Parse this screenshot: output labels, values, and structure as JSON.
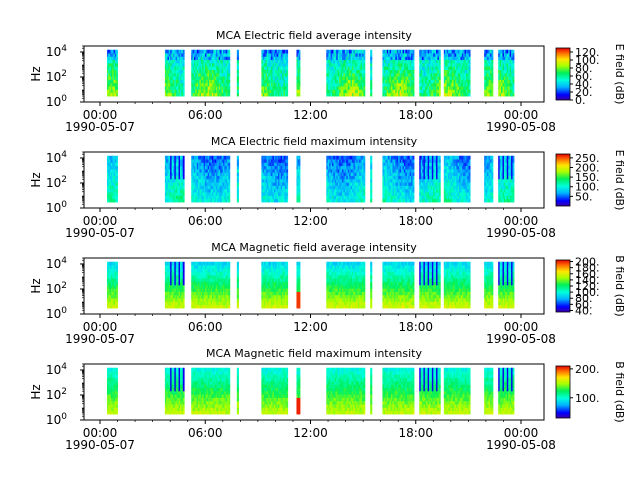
{
  "chart_data": [
    {
      "type": "heatmap",
      "title": "MCA  Electric field average intensity",
      "ylabel": "Hz",
      "y_ticks": [
        "10",
        "10",
        "10"
      ],
      "y_tick_exps": [
        "0",
        "2",
        "4"
      ],
      "y_scale": "log",
      "ylim": [
        1,
        30000
      ],
      "x_ticks": [
        "00:00",
        "06:00",
        "12:00",
        "18:00",
        "00:00"
      ],
      "x_dates": [
        "1990-05-07",
        "1990-05-08"
      ],
      "colorbar": {
        "label": "E field (dB)",
        "range": [
          0,
          130
        ],
        "ticks": [
          "0.",
          "20.",
          "40.",
          "60.",
          "80.",
          "100.",
          "120."
        ]
      },
      "style": "avg-e"
    },
    {
      "type": "heatmap",
      "title": "MCA  Electric field maximum intensity",
      "ylabel": "Hz",
      "y_ticks": [
        "10",
        "10",
        "10"
      ],
      "y_tick_exps": [
        "0",
        "2",
        "4"
      ],
      "y_scale": "log",
      "ylim": [
        1,
        30000
      ],
      "x_ticks": [
        "00:00",
        "06:00",
        "12:00",
        "18:00",
        "00:00"
      ],
      "x_dates": [
        "1990-05-07",
        "1990-05-08"
      ],
      "colorbar": {
        "label": "E field (dB)",
        "range": [
          0,
          270
        ],
        "ticks": [
          "50.",
          "100.",
          "150.",
          "200.",
          "250."
        ]
      },
      "style": "max-e"
    },
    {
      "type": "heatmap",
      "title": "MCA  Magnetic field average intensity",
      "ylabel": "Hz",
      "y_ticks": [
        "10",
        "10",
        "10"
      ],
      "y_tick_exps": [
        "0",
        "2",
        "4"
      ],
      "y_scale": "log",
      "ylim": [
        1,
        30000
      ],
      "x_ticks": [
        "00:00",
        "06:00",
        "12:00",
        "18:00",
        "00:00"
      ],
      "x_dates": [
        "1990-05-07",
        "1990-05-08"
      ],
      "colorbar": {
        "label": "B field (dB)",
        "range": [
          35,
          205
        ],
        "ticks": [
          "40.",
          "60.",
          "80.",
          "100.",
          "120.",
          "140.",
          "160.",
          "180.",
          "200."
        ]
      },
      "style": "avg-b"
    },
    {
      "type": "heatmap",
      "title": "MCA  Magnetic field maximum intensity",
      "ylabel": "Hz",
      "y_ticks": [
        "10",
        "10",
        "10"
      ],
      "y_tick_exps": [
        "0",
        "2",
        "4"
      ],
      "y_scale": "log",
      "ylim": [
        1,
        30000
      ],
      "x_ticks": [
        "00:00",
        "06:00",
        "12:00",
        "18:00",
        "00:00"
      ],
      "x_dates": [
        "1990-05-07",
        "1990-05-08"
      ],
      "colorbar": {
        "label": "B field (dB)",
        "range": [
          30,
          210
        ],
        "ticks": [
          "100.",
          "200."
        ]
      },
      "style": "max-b"
    }
  ],
  "data_segments_hours": [
    [
      0.4,
      1.0
    ],
    [
      3.7,
      4.0
    ],
    [
      4.0,
      4.8
    ],
    [
      5.2,
      7.4
    ],
    [
      7.8,
      7.9
    ],
    [
      9.2,
      10.7
    ],
    [
      11.2,
      11.4
    ],
    [
      12.9,
      15.1
    ],
    [
      15.4,
      15.5
    ],
    [
      16.1,
      17.9
    ],
    [
      18.2,
      19.4
    ],
    [
      19.6,
      21.1
    ],
    [
      21.9,
      22.4
    ],
    [
      22.7,
      23.6
    ]
  ]
}
